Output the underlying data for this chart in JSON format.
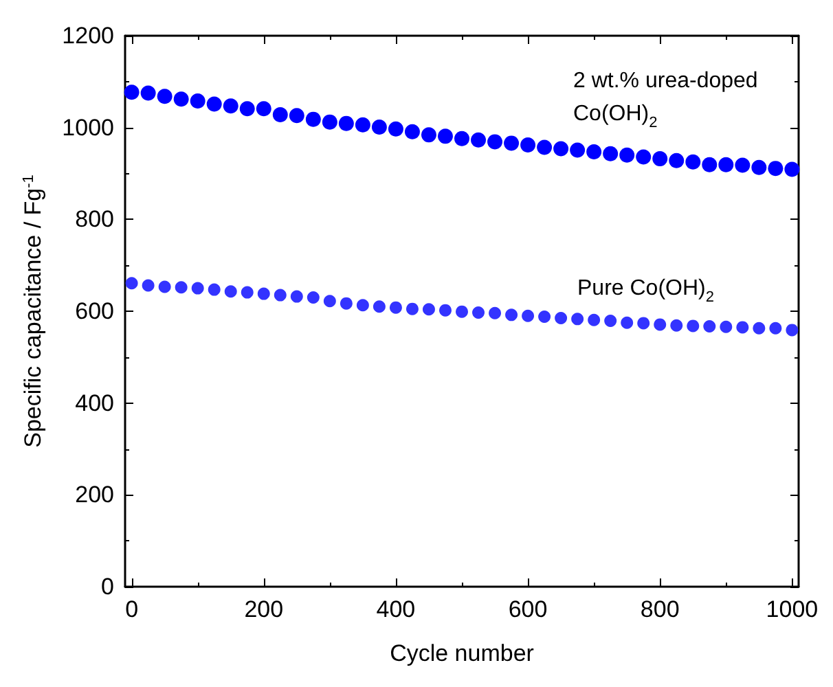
{
  "chart_data": {
    "type": "scatter",
    "xlabel": "Cycle number",
    "ylabel": "Specific capacitance / Fg$^{-1}$",
    "x": [
      0,
      25,
      50,
      75,
      100,
      125,
      150,
      175,
      200,
      225,
      250,
      275,
      300,
      325,
      350,
      375,
      400,
      425,
      450,
      475,
      500,
      525,
      550,
      575,
      600,
      625,
      650,
      675,
      700,
      725,
      750,
      775,
      800,
      825,
      850,
      875,
      900,
      925,
      950,
      975,
      1000
    ],
    "series": [
      {
        "name": "2 wt.% urea-doped Co(OH)$_{2}$",
        "color": "#0000ff",
        "values": [
          1077,
          1075,
          1068,
          1062,
          1058,
          1051,
          1047,
          1041,
          1041,
          1028,
          1026,
          1018,
          1012,
          1009,
          1006,
          1001,
          997,
          991,
          984,
          981,
          976,
          973,
          969,
          966,
          962,
          957,
          954,
          951,
          947,
          943,
          940,
          936,
          932,
          928,
          925,
          919,
          919,
          918,
          913,
          911,
          909
        ]
      },
      {
        "name": "Pure Co(OH)$_{2}$",
        "color": "#3333ff",
        "values": [
          661,
          656,
          653,
          652,
          650,
          647,
          643,
          641,
          638,
          635,
          632,
          630,
          622,
          617,
          613,
          610,
          608,
          605,
          604,
          602,
          599,
          597,
          596,
          592,
          590,
          588,
          585,
          583,
          581,
          579,
          575,
          574,
          571,
          569,
          568,
          567,
          566,
          565,
          563,
          563,
          559
        ]
      }
    ],
    "xlim": [
      -10,
      1010
    ],
    "xticks": [
      0,
      200,
      400,
      600,
      800,
      1000
    ],
    "ylim": [
      0,
      1200
    ],
    "yticks": [
      0,
      200,
      400,
      600,
      800,
      1000,
      1200
    ],
    "grid": false,
    "legend": false,
    "marker": "circle"
  }
}
